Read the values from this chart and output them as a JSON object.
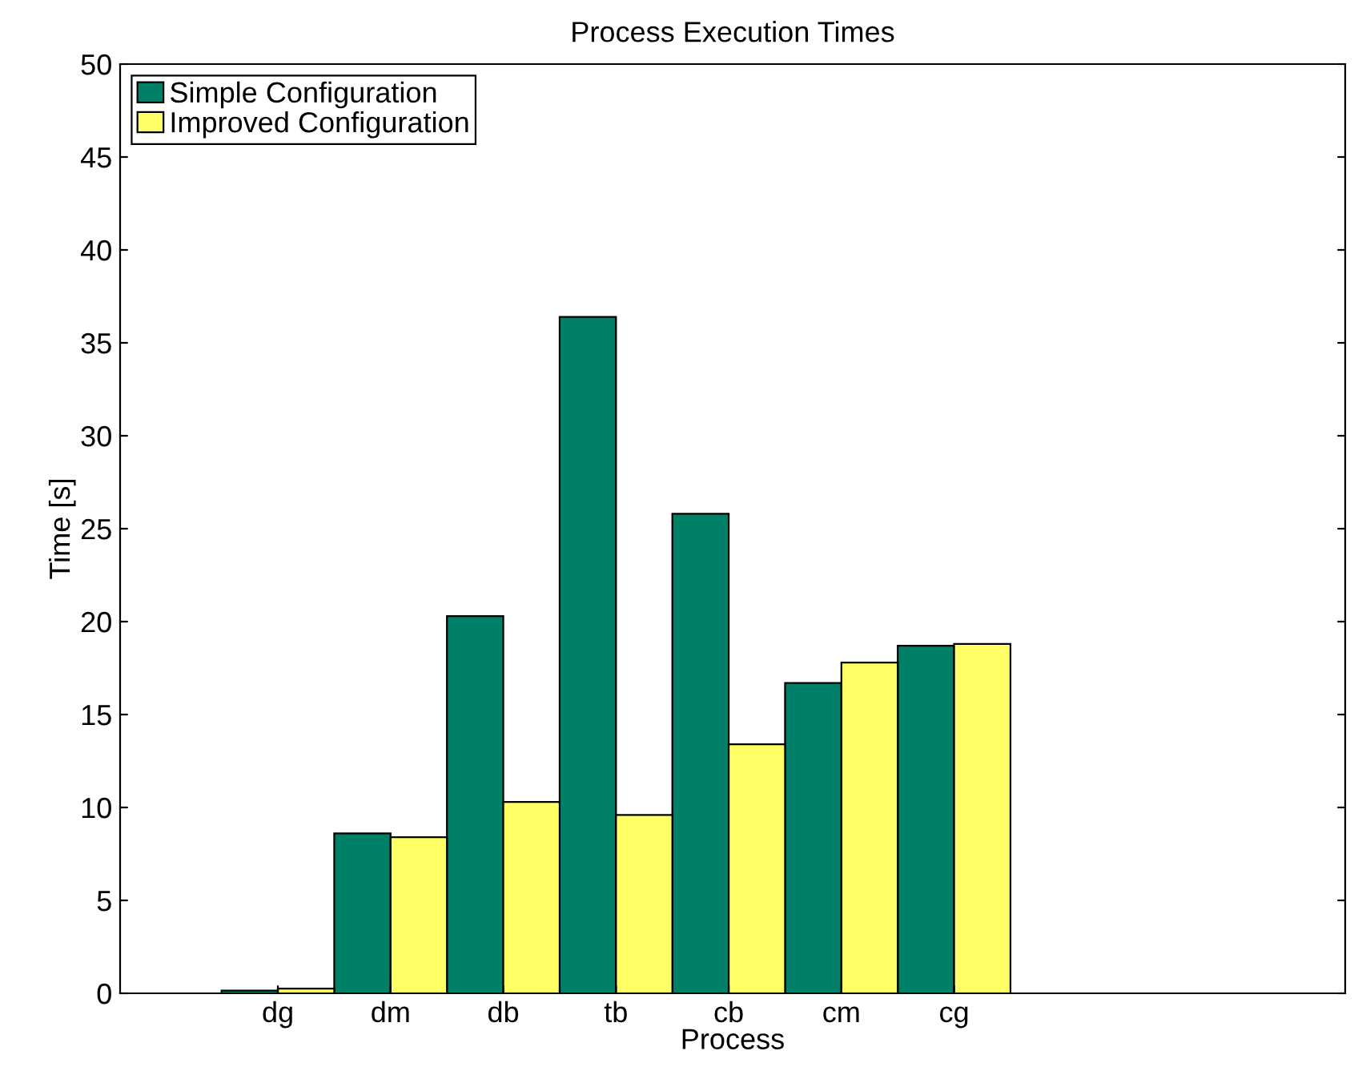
{
  "chart_data": {
    "type": "bar",
    "title": "Process Execution Times",
    "xlabel": "Process",
    "ylabel": "Time [s]",
    "categories": [
      "dg",
      "dm",
      "db",
      "tb",
      "cb",
      "cm",
      "cg"
    ],
    "series": [
      {
        "name": "Simple Configuration",
        "color": "#008066",
        "values": [
          0.15,
          8.6,
          20.3,
          36.4,
          25.8,
          16.7,
          18.7
        ]
      },
      {
        "name": "Improved Configuration",
        "color": "#ffff66",
        "values": [
          0.25,
          8.4,
          10.3,
          9.6,
          13.4,
          17.8,
          18.8
        ]
      }
    ],
    "ylim": [
      0,
      50
    ],
    "yticks": [
      0,
      5,
      10,
      15,
      20,
      25,
      30,
      35,
      40,
      45,
      50
    ],
    "grid": false,
    "legend": "top left"
  }
}
